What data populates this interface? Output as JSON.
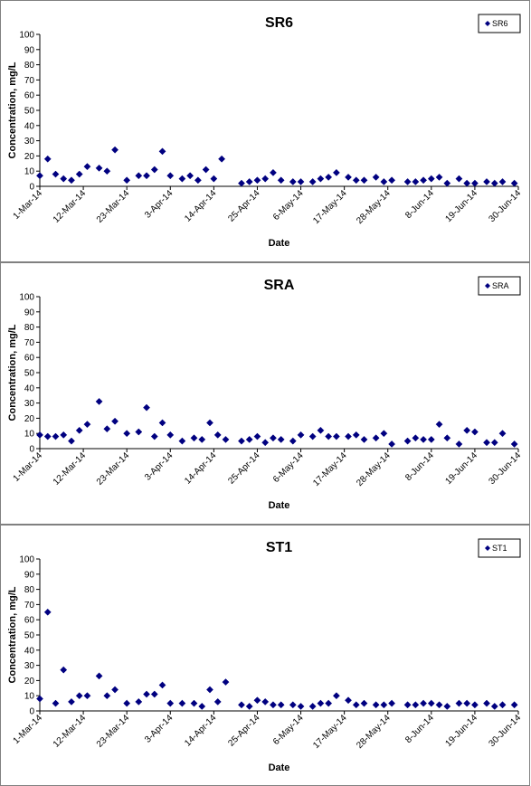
{
  "chart_data": [
    {
      "type": "scatter",
      "title": "SR6",
      "xlabel": "Date",
      "ylabel": "Concentration, mg/L",
      "ylim": [
        0,
        100
      ],
      "yticks": [
        "0",
        "10",
        "20",
        "30",
        "40",
        "50",
        "60",
        "70",
        "80",
        "90",
        "100"
      ],
      "xlim": [
        "2014-03-01",
        "2014-06-30"
      ],
      "xticks": [
        {
          "date": "2014-03-01",
          "label": "1-Mar-14"
        },
        {
          "date": "2014-03-12",
          "label": "12-Mar-14"
        },
        {
          "date": "2014-03-23",
          "label": "23-Mar-14"
        },
        {
          "date": "2014-04-03",
          "label": "3-Apr-14"
        },
        {
          "date": "2014-04-14",
          "label": "14-Apr-14"
        },
        {
          "date": "2014-04-25",
          "label": "25-Apr-14"
        },
        {
          "date": "2014-05-06",
          "label": "6-May-14"
        },
        {
          "date": "2014-05-17",
          "label": "17-May-14"
        },
        {
          "date": "2014-05-28",
          "label": "28-May-14"
        },
        {
          "date": "2014-06-08",
          "label": "8-Jun-14"
        },
        {
          "date": "2014-06-19",
          "label": "19-Jun-14"
        },
        {
          "date": "2014-06-30",
          "label": "30-Jun-14"
        }
      ],
      "legend_position": "top-right",
      "series": [
        {
          "name": "SR6",
          "color": "#000080",
          "marker": "diamond",
          "points": [
            {
              "x": "2014-03-01",
              "y": 7
            },
            {
              "x": "2014-03-03",
              "y": 18
            },
            {
              "x": "2014-03-05",
              "y": 8
            },
            {
              "x": "2014-03-07",
              "y": 5
            },
            {
              "x": "2014-03-09",
              "y": 4
            },
            {
              "x": "2014-03-11",
              "y": 8
            },
            {
              "x": "2014-03-13",
              "y": 13
            },
            {
              "x": "2014-03-16",
              "y": 12
            },
            {
              "x": "2014-03-18",
              "y": 10
            },
            {
              "x": "2014-03-20",
              "y": 24
            },
            {
              "x": "2014-03-23",
              "y": 4
            },
            {
              "x": "2014-03-26",
              "y": 7
            },
            {
              "x": "2014-03-28",
              "y": 7
            },
            {
              "x": "2014-03-30",
              "y": 11
            },
            {
              "x": "2014-04-01",
              "y": 23
            },
            {
              "x": "2014-04-03",
              "y": 7
            },
            {
              "x": "2014-04-06",
              "y": 5
            },
            {
              "x": "2014-04-08",
              "y": 7
            },
            {
              "x": "2014-04-10",
              "y": 4
            },
            {
              "x": "2014-04-12",
              "y": 11
            },
            {
              "x": "2014-04-14",
              "y": 5
            },
            {
              "x": "2014-04-16",
              "y": 18
            },
            {
              "x": "2014-04-21",
              "y": 2
            },
            {
              "x": "2014-04-23",
              "y": 3
            },
            {
              "x": "2014-04-25",
              "y": 4
            },
            {
              "x": "2014-04-27",
              "y": 5
            },
            {
              "x": "2014-04-29",
              "y": 9
            },
            {
              "x": "2014-05-01",
              "y": 4
            },
            {
              "x": "2014-05-04",
              "y": 3
            },
            {
              "x": "2014-05-06",
              "y": 3
            },
            {
              "x": "2014-05-09",
              "y": 3
            },
            {
              "x": "2014-05-11",
              "y": 5
            },
            {
              "x": "2014-05-13",
              "y": 6
            },
            {
              "x": "2014-05-15",
              "y": 9
            },
            {
              "x": "2014-05-18",
              "y": 6
            },
            {
              "x": "2014-05-20",
              "y": 4
            },
            {
              "x": "2014-05-22",
              "y": 4
            },
            {
              "x": "2014-05-25",
              "y": 6
            },
            {
              "x": "2014-05-27",
              "y": 3
            },
            {
              "x": "2014-05-29",
              "y": 4
            },
            {
              "x": "2014-06-02",
              "y": 3
            },
            {
              "x": "2014-06-04",
              "y": 3
            },
            {
              "x": "2014-06-06",
              "y": 4
            },
            {
              "x": "2014-06-08",
              "y": 5
            },
            {
              "x": "2014-06-10",
              "y": 6
            },
            {
              "x": "2014-06-12",
              "y": 2
            },
            {
              "x": "2014-06-15",
              "y": 5
            },
            {
              "x": "2014-06-17",
              "y": 2
            },
            {
              "x": "2014-06-19",
              "y": 2
            },
            {
              "x": "2014-06-22",
              "y": 3
            },
            {
              "x": "2014-06-24",
              "y": 2
            },
            {
              "x": "2014-06-26",
              "y": 3
            },
            {
              "x": "2014-06-29",
              "y": 2
            }
          ]
        }
      ]
    },
    {
      "type": "scatter",
      "title": "SRA",
      "xlabel": "Date",
      "ylabel": "Concentration, mg/L",
      "ylim": [
        0,
        100
      ],
      "yticks": [
        "0",
        "10",
        "20",
        "30",
        "40",
        "50",
        "60",
        "70",
        "80",
        "90",
        "100"
      ],
      "xlim": [
        "2014-03-01",
        "2014-06-30"
      ],
      "xticks": [
        {
          "date": "2014-03-01",
          "label": "1-Mar-14"
        },
        {
          "date": "2014-03-12",
          "label": "12-Mar-14"
        },
        {
          "date": "2014-03-23",
          "label": "23-Mar-14"
        },
        {
          "date": "2014-04-03",
          "label": "3-Apr-14"
        },
        {
          "date": "2014-04-14",
          "label": "14-Apr-14"
        },
        {
          "date": "2014-04-25",
          "label": "25-Apr-14"
        },
        {
          "date": "2014-05-06",
          "label": "6-May-14"
        },
        {
          "date": "2014-05-17",
          "label": "17-May-14"
        },
        {
          "date": "2014-05-28",
          "label": "28-May-14"
        },
        {
          "date": "2014-06-08",
          "label": "8-Jun-14"
        },
        {
          "date": "2014-06-19",
          "label": "19-Jun-14"
        },
        {
          "date": "2014-06-30",
          "label": "30-Jun-14"
        }
      ],
      "legend_position": "top-right",
      "series": [
        {
          "name": "SRA",
          "color": "#000080",
          "marker": "diamond",
          "points": [
            {
              "x": "2014-03-01",
              "y": 9
            },
            {
              "x": "2014-03-03",
              "y": 8
            },
            {
              "x": "2014-03-05",
              "y": 8
            },
            {
              "x": "2014-03-07",
              "y": 9
            },
            {
              "x": "2014-03-09",
              "y": 5
            },
            {
              "x": "2014-03-11",
              "y": 12
            },
            {
              "x": "2014-03-13",
              "y": 16
            },
            {
              "x": "2014-03-16",
              "y": 31
            },
            {
              "x": "2014-03-18",
              "y": 13
            },
            {
              "x": "2014-03-20",
              "y": 18
            },
            {
              "x": "2014-03-23",
              "y": 10
            },
            {
              "x": "2014-03-26",
              "y": 11
            },
            {
              "x": "2014-03-28",
              "y": 27
            },
            {
              "x": "2014-03-30",
              "y": 8
            },
            {
              "x": "2014-04-01",
              "y": 17
            },
            {
              "x": "2014-04-03",
              "y": 9
            },
            {
              "x": "2014-04-06",
              "y": 5
            },
            {
              "x": "2014-04-09",
              "y": 7
            },
            {
              "x": "2014-04-11",
              "y": 6
            },
            {
              "x": "2014-04-13",
              "y": 17
            },
            {
              "x": "2014-04-15",
              "y": 9
            },
            {
              "x": "2014-04-17",
              "y": 6
            },
            {
              "x": "2014-04-21",
              "y": 5
            },
            {
              "x": "2014-04-23",
              "y": 6
            },
            {
              "x": "2014-04-25",
              "y": 8
            },
            {
              "x": "2014-04-27",
              "y": 4
            },
            {
              "x": "2014-04-29",
              "y": 7
            },
            {
              "x": "2014-05-01",
              "y": 6
            },
            {
              "x": "2014-05-04",
              "y": 5
            },
            {
              "x": "2014-05-06",
              "y": 9
            },
            {
              "x": "2014-05-09",
              "y": 8
            },
            {
              "x": "2014-05-11",
              "y": 12
            },
            {
              "x": "2014-05-13",
              "y": 8
            },
            {
              "x": "2014-05-15",
              "y": 8
            },
            {
              "x": "2014-05-18",
              "y": 8
            },
            {
              "x": "2014-05-20",
              "y": 9
            },
            {
              "x": "2014-05-22",
              "y": 6
            },
            {
              "x": "2014-05-25",
              "y": 7
            },
            {
              "x": "2014-05-27",
              "y": 10
            },
            {
              "x": "2014-05-29",
              "y": 3
            },
            {
              "x": "2014-06-02",
              "y": 5
            },
            {
              "x": "2014-06-04",
              "y": 7
            },
            {
              "x": "2014-06-06",
              "y": 6
            },
            {
              "x": "2014-06-08",
              "y": 6
            },
            {
              "x": "2014-06-10",
              "y": 16
            },
            {
              "x": "2014-06-12",
              "y": 7
            },
            {
              "x": "2014-06-15",
              "y": 3
            },
            {
              "x": "2014-06-17",
              "y": 12
            },
            {
              "x": "2014-06-19",
              "y": 11
            },
            {
              "x": "2014-06-22",
              "y": 4
            },
            {
              "x": "2014-06-24",
              "y": 4
            },
            {
              "x": "2014-06-26",
              "y": 10
            },
            {
              "x": "2014-06-29",
              "y": 3
            }
          ]
        }
      ]
    },
    {
      "type": "scatter",
      "title": "ST1",
      "xlabel": "Date",
      "ylabel": "Concentration, mg/L",
      "ylim": [
        0,
        100
      ],
      "yticks": [
        "0",
        "10",
        "20",
        "30",
        "40",
        "50",
        "60",
        "70",
        "80",
        "90",
        "100"
      ],
      "xlim": [
        "2014-03-01",
        "2014-06-30"
      ],
      "xticks": [
        {
          "date": "2014-03-01",
          "label": "1-Mar-14"
        },
        {
          "date": "2014-03-12",
          "label": "12-Mar-14"
        },
        {
          "date": "2014-03-23",
          "label": "23-Mar-14"
        },
        {
          "date": "2014-04-03",
          "label": "3-Apr-14"
        },
        {
          "date": "2014-04-14",
          "label": "14-Apr-14"
        },
        {
          "date": "2014-04-25",
          "label": "25-Apr-14"
        },
        {
          "date": "2014-05-06",
          "label": "6-May-14"
        },
        {
          "date": "2014-05-17",
          "label": "17-May-14"
        },
        {
          "date": "2014-05-28",
          "label": "28-May-14"
        },
        {
          "date": "2014-06-08",
          "label": "8-Jun-14"
        },
        {
          "date": "2014-06-19",
          "label": "19-Jun-14"
        },
        {
          "date": "2014-06-30",
          "label": "30-Jun-14"
        }
      ],
      "legend_position": "top-right",
      "series": [
        {
          "name": "ST1",
          "color": "#000080",
          "marker": "diamond",
          "points": [
            {
              "x": "2014-03-01",
              "y": 8
            },
            {
              "x": "2014-03-03",
              "y": 65
            },
            {
              "x": "2014-03-05",
              "y": 5
            },
            {
              "x": "2014-03-07",
              "y": 27
            },
            {
              "x": "2014-03-09",
              "y": 6
            },
            {
              "x": "2014-03-11",
              "y": 10
            },
            {
              "x": "2014-03-13",
              "y": 10
            },
            {
              "x": "2014-03-16",
              "y": 23
            },
            {
              "x": "2014-03-18",
              "y": 10
            },
            {
              "x": "2014-03-20",
              "y": 14
            },
            {
              "x": "2014-03-23",
              "y": 5
            },
            {
              "x": "2014-03-26",
              "y": 6
            },
            {
              "x": "2014-03-28",
              "y": 11
            },
            {
              "x": "2014-03-30",
              "y": 11
            },
            {
              "x": "2014-04-01",
              "y": 17
            },
            {
              "x": "2014-04-03",
              "y": 5
            },
            {
              "x": "2014-04-06",
              "y": 5
            },
            {
              "x": "2014-04-09",
              "y": 5
            },
            {
              "x": "2014-04-11",
              "y": 3
            },
            {
              "x": "2014-04-13",
              "y": 14
            },
            {
              "x": "2014-04-15",
              "y": 6
            },
            {
              "x": "2014-04-17",
              "y": 19
            },
            {
              "x": "2014-04-21",
              "y": 4
            },
            {
              "x": "2014-04-23",
              "y": 3
            },
            {
              "x": "2014-04-25",
              "y": 7
            },
            {
              "x": "2014-04-27",
              "y": 6
            },
            {
              "x": "2014-04-29",
              "y": 4
            },
            {
              "x": "2014-05-01",
              "y": 4
            },
            {
              "x": "2014-05-04",
              "y": 4
            },
            {
              "x": "2014-05-06",
              "y": 3
            },
            {
              "x": "2014-05-09",
              "y": 3
            },
            {
              "x": "2014-05-11",
              "y": 5
            },
            {
              "x": "2014-05-13",
              "y": 5
            },
            {
              "x": "2014-05-15",
              "y": 10
            },
            {
              "x": "2014-05-18",
              "y": 7
            },
            {
              "x": "2014-05-20",
              "y": 4
            },
            {
              "x": "2014-05-22",
              "y": 5
            },
            {
              "x": "2014-05-25",
              "y": 4
            },
            {
              "x": "2014-05-27",
              "y": 4
            },
            {
              "x": "2014-05-29",
              "y": 5
            },
            {
              "x": "2014-06-02",
              "y": 4
            },
            {
              "x": "2014-06-04",
              "y": 4
            },
            {
              "x": "2014-06-06",
              "y": 5
            },
            {
              "x": "2014-06-08",
              "y": 5
            },
            {
              "x": "2014-06-10",
              "y": 4
            },
            {
              "x": "2014-06-12",
              "y": 3
            },
            {
              "x": "2014-06-15",
              "y": 5
            },
            {
              "x": "2014-06-17",
              "y": 5
            },
            {
              "x": "2014-06-19",
              "y": 4
            },
            {
              "x": "2014-06-22",
              "y": 5
            },
            {
              "x": "2014-06-24",
              "y": 3
            },
            {
              "x": "2014-06-26",
              "y": 4
            },
            {
              "x": "2014-06-29",
              "y": 4
            }
          ]
        }
      ]
    }
  ]
}
